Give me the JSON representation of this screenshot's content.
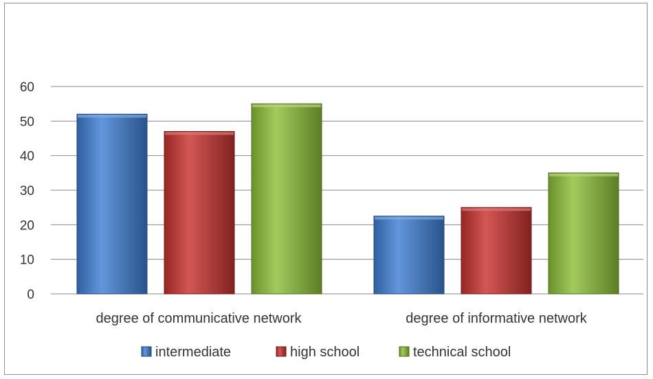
{
  "chart_data": {
    "type": "bar",
    "categories": [
      "degree of communicative network",
      "degree of informative network"
    ],
    "series": [
      {
        "name": "intermediate",
        "values": [
          52,
          22.5
        ],
        "color": "#3f7fd4"
      },
      {
        "name": "high school",
        "values": [
          47,
          25
        ],
        "color": "#c8322f"
      },
      {
        "name": "technical school",
        "values": [
          55,
          35
        ],
        "color": "#8ec03a"
      }
    ],
    "ylim": [
      0,
      60
    ],
    "yticks": [
      0,
      10,
      20,
      30,
      40,
      50,
      60
    ],
    "grid": true,
    "legend_position": "bottom"
  }
}
